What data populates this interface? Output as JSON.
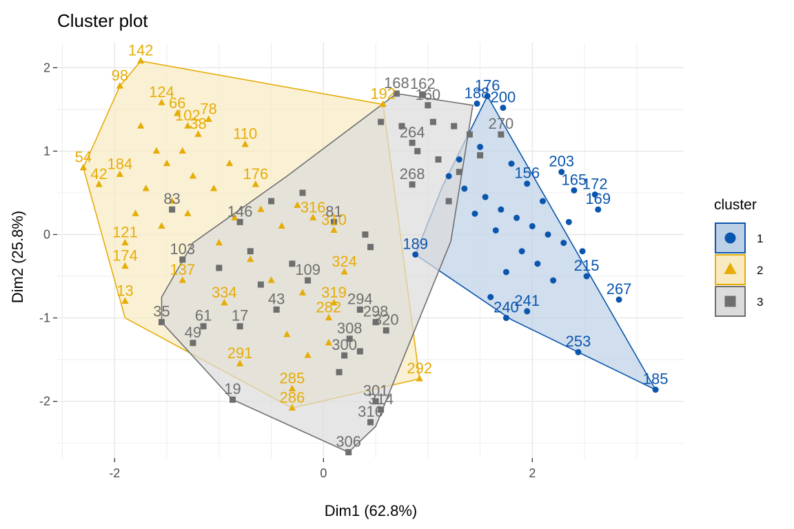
{
  "chart_data": {
    "type": "scatter",
    "title": "Cluster plot",
    "xlabel": "Dim1 (62.8%)",
    "ylabel": "Dim2 (25.8%)",
    "xlim": [
      -2.55,
      3.45
    ],
    "ylim": [
      -2.68,
      2.3
    ],
    "x_ticks": [
      -2,
      0,
      2
    ],
    "y_ticks": [
      -2,
      -1,
      0,
      1,
      2
    ],
    "grid": true,
    "legend": {
      "title": "cluster",
      "position": "right",
      "entries": [
        "1",
        "2",
        "3"
      ]
    },
    "series": [
      {
        "name": "1",
        "color": "#0a55ad",
        "fill": "#bcd0e6",
        "marker": "circle",
        "hull": [
          [
            1.57,
            1.66
          ],
          [
            3.18,
            -1.86
          ],
          [
            2.44,
            -1.41
          ],
          [
            1.8,
            -1.02
          ],
          [
            0.88,
            -0.24
          ],
          [
            1.14,
            0.58
          ]
        ],
        "points": [
          {
            "label": "176",
            "x": 1.57,
            "y": 1.66
          },
          {
            "label": "200",
            "x": 1.72,
            "y": 1.52
          },
          {
            "label": "188",
            "x": 1.47,
            "y": 1.57
          },
          {
            "label": "203",
            "x": 2.28,
            "y": 0.75
          },
          {
            "label": "165",
            "x": 2.4,
            "y": 0.53
          },
          {
            "label": "172",
            "x": 2.6,
            "y": 0.48
          },
          {
            "label": "156",
            "x": 1.95,
            "y": 0.61
          },
          {
            "label": "169",
            "x": 2.63,
            "y": 0.3
          },
          {
            "label": "189",
            "x": 0.88,
            "y": -0.24
          },
          {
            "label": "215",
            "x": 2.52,
            "y": -0.5
          },
          {
            "label": "267",
            "x": 2.83,
            "y": -0.78
          },
          {
            "label": "253",
            "x": 2.44,
            "y": -1.41
          },
          {
            "label": "185",
            "x": 3.18,
            "y": -1.86
          },
          {
            "label": "241",
            "x": 1.95,
            "y": -0.92
          },
          {
            "label": "240",
            "x": 1.75,
            "y": -1.0
          },
          {
            "label": "",
            "x": 1.2,
            "y": 0.7
          },
          {
            "label": "",
            "x": 1.35,
            "y": 0.55
          },
          {
            "label": "",
            "x": 1.55,
            "y": 0.45
          },
          {
            "label": "",
            "x": 1.7,
            "y": 0.3
          },
          {
            "label": "",
            "x": 1.85,
            "y": 0.2
          },
          {
            "label": "",
            "x": 2.0,
            "y": 0.1
          },
          {
            "label": "",
            "x": 2.15,
            "y": 0.0
          },
          {
            "label": "",
            "x": 2.3,
            "y": -0.1
          },
          {
            "label": "",
            "x": 1.9,
            "y": -0.2
          },
          {
            "label": "",
            "x": 2.05,
            "y": -0.35
          },
          {
            "label": "",
            "x": 1.75,
            "y": -0.45
          },
          {
            "label": "",
            "x": 2.2,
            "y": -0.55
          },
          {
            "label": "",
            "x": 1.65,
            "y": 0.05
          },
          {
            "label": "",
            "x": 1.45,
            "y": 0.25
          },
          {
            "label": "",
            "x": 2.35,
            "y": 0.15
          },
          {
            "label": "",
            "x": 2.48,
            "y": -0.2
          },
          {
            "label": "",
            "x": 1.6,
            "y": -0.75
          },
          {
            "label": "",
            "x": 2.1,
            "y": 0.4
          },
          {
            "label": "",
            "x": 1.3,
            "y": 0.9
          },
          {
            "label": "",
            "x": 1.5,
            "y": 1.05
          },
          {
            "label": "",
            "x": 1.8,
            "y": 0.85
          }
        ]
      },
      {
        "name": "2",
        "color": "#e6ac07",
        "fill": "#f8ebc2",
        "marker": "triangle",
        "hull": [
          [
            -1.75,
            2.08
          ],
          [
            -1.95,
            1.78
          ],
          [
            -2.3,
            0.8
          ],
          [
            -1.9,
            -1.0
          ],
          [
            -0.3,
            -2.08
          ],
          [
            0.92,
            -1.73
          ],
          [
            0.57,
            1.56
          ]
        ],
        "points": [
          {
            "label": "142",
            "x": -1.75,
            "y": 2.08
          },
          {
            "label": "98",
            "x": -1.95,
            "y": 1.78
          },
          {
            "label": "124",
            "x": -1.55,
            "y": 1.58
          },
          {
            "label": "66",
            "x": -1.4,
            "y": 1.45
          },
          {
            "label": "78",
            "x": -1.1,
            "y": 1.38
          },
          {
            "label": "102",
            "x": -1.3,
            "y": 1.3
          },
          {
            "label": "38",
            "x": -1.2,
            "y": 1.2
          },
          {
            "label": "110",
            "x": -0.75,
            "y": 1.08
          },
          {
            "label": "54",
            "x": -2.3,
            "y": 0.8
          },
          {
            "label": "184",
            "x": -1.95,
            "y": 0.72
          },
          {
            "label": "42",
            "x": -2.15,
            "y": 0.6
          },
          {
            "label": "192",
            "x": 0.57,
            "y": 1.56
          },
          {
            "label": "176",
            "x": -0.65,
            "y": 0.6
          },
          {
            "label": "121",
            "x": -1.9,
            "y": -0.1
          },
          {
            "label": "174",
            "x": -1.9,
            "y": -0.38
          },
          {
            "label": "137",
            "x": -1.35,
            "y": -0.55
          },
          {
            "label": "13",
            "x": -1.9,
            "y": -0.8
          },
          {
            "label": "334",
            "x": -0.95,
            "y": -0.82
          },
          {
            "label": "324",
            "x": 0.2,
            "y": -0.45
          },
          {
            "label": "319",
            "x": 0.1,
            "y": -0.82
          },
          {
            "label": "282",
            "x": 0.05,
            "y": -1.0
          },
          {
            "label": "291",
            "x": -0.8,
            "y": -1.55
          },
          {
            "label": "292",
            "x": 0.92,
            "y": -1.73
          },
          {
            "label": "286",
            "x": -0.3,
            "y": -2.08
          },
          {
            "label": "285",
            "x": -0.3,
            "y": -1.85
          },
          {
            "label": "310",
            "x": 0.1,
            "y": 0.05
          },
          {
            "label": "316",
            "x": -0.1,
            "y": 0.2
          },
          {
            "label": "",
            "x": -1.6,
            "y": 1.0
          },
          {
            "label": "",
            "x": -1.5,
            "y": 0.85
          },
          {
            "label": "",
            "x": -1.7,
            "y": 0.55
          },
          {
            "label": "",
            "x": -1.45,
            "y": 0.4
          },
          {
            "label": "",
            "x": -1.25,
            "y": 0.7
          },
          {
            "label": "",
            "x": -1.05,
            "y": 0.55
          },
          {
            "label": "",
            "x": -0.9,
            "y": 0.85
          },
          {
            "label": "",
            "x": -1.8,
            "y": 0.25
          },
          {
            "label": "",
            "x": -1.55,
            "y": 0.1
          },
          {
            "label": "",
            "x": -1.3,
            "y": 0.25
          },
          {
            "label": "",
            "x": -1.0,
            "y": -0.1
          },
          {
            "label": "",
            "x": -0.7,
            "y": -0.3
          },
          {
            "label": "",
            "x": -0.5,
            "y": -0.55
          },
          {
            "label": "",
            "x": -0.2,
            "y": -0.7
          },
          {
            "label": "",
            "x": -0.35,
            "y": -1.2
          },
          {
            "label": "",
            "x": -0.15,
            "y": -1.45
          },
          {
            "label": "",
            "x": 0.05,
            "y": -1.3
          },
          {
            "label": "",
            "x": -0.6,
            "y": 0.3
          },
          {
            "label": "",
            "x": -0.4,
            "y": 0.1
          },
          {
            "label": "",
            "x": -0.25,
            "y": 0.35
          },
          {
            "label": "",
            "x": -1.75,
            "y": 1.3
          },
          {
            "label": "",
            "x": -1.35,
            "y": 1.0
          },
          {
            "label": "",
            "x": -0.85,
            "y": 0.2
          }
        ]
      },
      {
        "name": "3",
        "color": "#6e6e6e",
        "fill": "#dcdcdc",
        "marker": "square",
        "hull": [
          [
            0.7,
            1.69
          ],
          [
            1.43,
            1.55
          ],
          [
            1.22,
            -0.08
          ],
          [
            0.5,
            -2.3
          ],
          [
            0.24,
            -2.61
          ],
          [
            -0.87,
            -1.98
          ],
          [
            -1.55,
            -1.05
          ],
          [
            -1.55,
            -0.75
          ],
          [
            -1.25,
            -0.1
          ],
          [
            -0.35,
            0.7
          ]
        ],
        "points": [
          {
            "label": "168",
            "x": 0.7,
            "y": 1.69
          },
          {
            "label": "162",
            "x": 0.95,
            "y": 1.68
          },
          {
            "label": "160",
            "x": 1.0,
            "y": 1.55
          },
          {
            "label": "264",
            "x": 0.85,
            "y": 1.1
          },
          {
            "label": "268",
            "x": 0.85,
            "y": 0.6
          },
          {
            "label": "270",
            "x": 1.7,
            "y": 1.2
          },
          {
            "label": "81",
            "x": 0.1,
            "y": 0.15
          },
          {
            "label": "103",
            "x": -1.35,
            "y": -0.3
          },
          {
            "label": "35",
            "x": -1.55,
            "y": -1.05
          },
          {
            "label": "61",
            "x": -1.15,
            "y": -1.1
          },
          {
            "label": "49",
            "x": -1.25,
            "y": -1.3
          },
          {
            "label": "17",
            "x": -0.8,
            "y": -1.1
          },
          {
            "label": "19",
            "x": -0.87,
            "y": -1.98
          },
          {
            "label": "43",
            "x": -0.45,
            "y": -0.9
          },
          {
            "label": "109",
            "x": -0.15,
            "y": -0.55
          },
          {
            "label": "294",
            "x": 0.35,
            "y": -0.9
          },
          {
            "label": "298",
            "x": 0.5,
            "y": -1.05
          },
          {
            "label": "320",
            "x": 0.6,
            "y": -1.15
          },
          {
            "label": "308",
            "x": 0.25,
            "y": -1.25
          },
          {
            "label": "300",
            "x": 0.2,
            "y": -1.45
          },
          {
            "label": "301",
            "x": 0.5,
            "y": -2.0
          },
          {
            "label": "314",
            "x": 0.55,
            "y": -2.1
          },
          {
            "label": "316",
            "x": 0.45,
            "y": -2.25
          },
          {
            "label": "306",
            "x": 0.24,
            "y": -2.61
          },
          {
            "label": "83",
            "x": -1.45,
            "y": 0.3
          },
          {
            "label": "146",
            "x": -0.8,
            "y": 0.15
          },
          {
            "label": "",
            "x": 0.55,
            "y": 1.35
          },
          {
            "label": "",
            "x": 0.75,
            "y": 1.3
          },
          {
            "label": "",
            "x": 1.05,
            "y": 1.35
          },
          {
            "label": "",
            "x": 1.25,
            "y": 1.3
          },
          {
            "label": "",
            "x": 1.4,
            "y": 1.2
          },
          {
            "label": "",
            "x": 0.9,
            "y": 1.0
          },
          {
            "label": "",
            "x": 1.1,
            "y": 0.9
          },
          {
            "label": "",
            "x": 1.3,
            "y": 0.75
          },
          {
            "label": "",
            "x": 1.5,
            "y": 0.95
          },
          {
            "label": "",
            "x": 1.2,
            "y": 0.4
          },
          {
            "label": "",
            "x": 0.4,
            "y": 0.0
          },
          {
            "label": "",
            "x": 0.45,
            "y": -0.15
          },
          {
            "label": "",
            "x": -0.6,
            "y": -0.6
          },
          {
            "label": "",
            "x": -1.0,
            "y": -0.4
          },
          {
            "label": "",
            "x": -0.3,
            "y": -0.35
          },
          {
            "label": "",
            "x": 0.15,
            "y": -1.65
          },
          {
            "label": "",
            "x": 0.35,
            "y": -1.4
          },
          {
            "label": "",
            "x": -0.5,
            "y": 0.4
          },
          {
            "label": "",
            "x": -0.2,
            "y": 0.5
          },
          {
            "label": "",
            "x": -0.7,
            "y": -0.2
          }
        ]
      }
    ]
  }
}
